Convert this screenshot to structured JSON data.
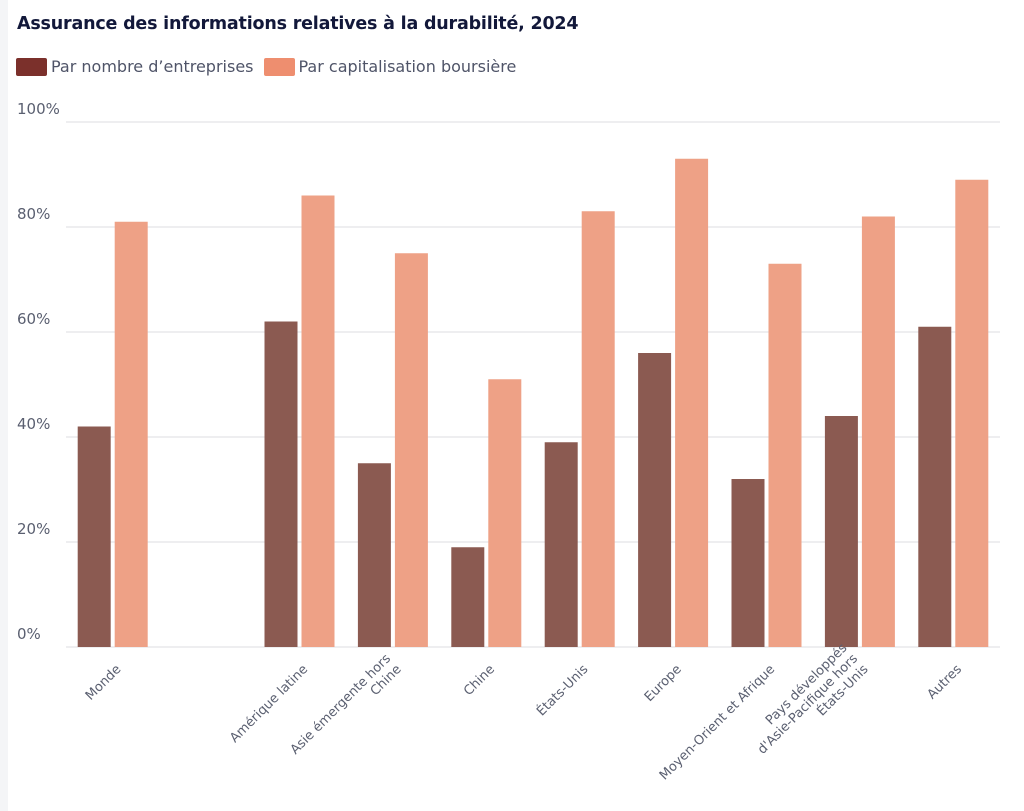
{
  "chart_data": {
    "type": "bar",
    "title": "Assurance des informations relatives à la durabilité, 2024",
    "xlabel": "",
    "ylabel": "",
    "ylim": [
      0,
      100
    ],
    "yticks": [
      0,
      20,
      40,
      60,
      80,
      100
    ],
    "ytick_labels": [
      "0%",
      "20%",
      "40%",
      "60%",
      "80%",
      "100%"
    ],
    "grid": true,
    "legend_position": "top-left",
    "categories": [
      [
        "Monde"
      ],
      [],
      [
        "Amérique latine"
      ],
      [
        "Asie émergente hors",
        "Chine"
      ],
      [
        "Chine"
      ],
      [
        "États-Unis"
      ],
      [
        "Europe"
      ],
      [
        "Moyen-Orient et Afrique"
      ],
      [
        "Pays développés",
        "d'Asie-Pacifique hors",
        "États-Unis"
      ],
      [
        "Autres"
      ]
    ],
    "series": [
      {
        "name": "Par nombre d’entreprises",
        "color": "#7b302b",
        "bar_color": "#8b5a51",
        "values": [
          42,
          null,
          62,
          35,
          19,
          39,
          56,
          32,
          44,
          61
        ]
      },
      {
        "name": "Par capitalisation boursière",
        "color": "#ee8e6f",
        "bar_color": "#eea186",
        "values": [
          81,
          null,
          86,
          75,
          51,
          83,
          93,
          73,
          82,
          89
        ]
      }
    ]
  }
}
